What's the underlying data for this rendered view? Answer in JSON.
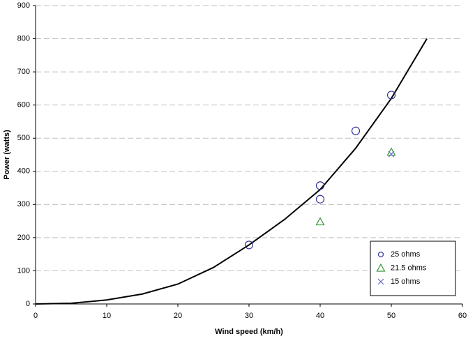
{
  "chart_data": {
    "type": "scatter",
    "xlabel": "Wind speed (km/h)",
    "ylabel": "Power (watts)",
    "xlim": [
      0,
      60
    ],
    "ylim": [
      0,
      900
    ],
    "xticks": [
      0,
      10,
      20,
      30,
      40,
      50,
      60
    ],
    "yticks": [
      0,
      100,
      200,
      300,
      400,
      500,
      600,
      700,
      800,
      900
    ],
    "grid": true,
    "legend": "lower right",
    "series": [
      {
        "color": "#000000",
        "marker": "line",
        "x": [
          0,
          5,
          10,
          15,
          20,
          25,
          30,
          35,
          40,
          45,
          50,
          55
        ],
        "values": [
          0,
          2,
          12,
          30,
          60,
          110,
          178,
          255,
          345,
          470,
          620,
          800
        ]
      },
      {
        "name": "25 ohms",
        "color": "#333399",
        "marker": "circle",
        "x": [
          30,
          40,
          40,
          45,
          50
        ],
        "values": [
          178,
          357,
          316,
          522,
          630
        ]
      },
      {
        "name": "21.5 ohms",
        "color": "#339933",
        "marker": "triangle",
        "x": [
          40,
          50
        ],
        "values": [
          248,
          458
        ]
      },
      {
        "name": "15 ohms",
        "color": "#6666cc",
        "marker": "x",
        "x": [
          50
        ],
        "values": [
          452
        ]
      }
    ]
  }
}
